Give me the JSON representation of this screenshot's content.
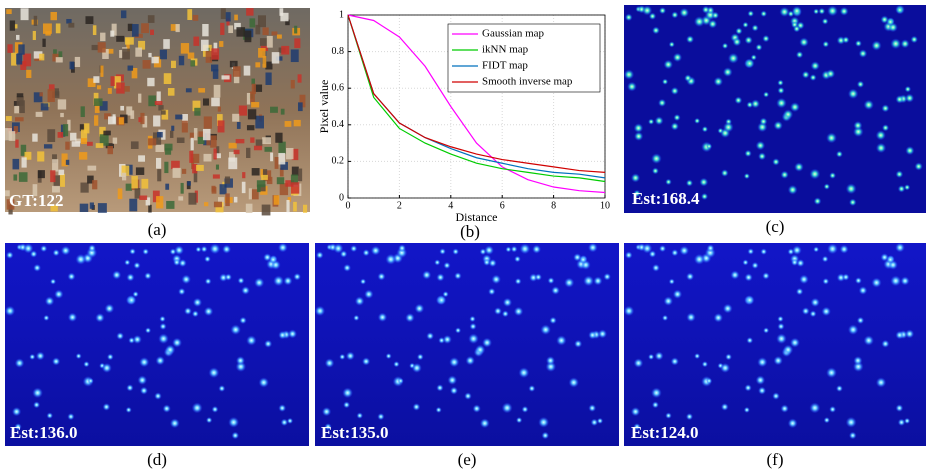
{
  "panels": [
    {
      "caption": "(a)",
      "overlay": "GT:122"
    },
    {
      "caption": "(b)"
    },
    {
      "caption": "(c)",
      "overlay": "Est:168.4"
    },
    {
      "caption": "(d)",
      "overlay": "Est:136.0"
    },
    {
      "caption": "(e)",
      "overlay": "Est:135.0"
    },
    {
      "caption": "(f)",
      "overlay": "Est:124.0"
    }
  ],
  "chart_data": {
    "type": "line",
    "xlabel": "Distance",
    "ylabel": "Pixel value",
    "x": [
      0,
      1,
      2,
      3,
      4,
      5,
      6,
      7,
      8,
      9,
      10
    ],
    "series": [
      {
        "name": "Gaussian map",
        "color": "#ff00ff",
        "values": [
          1.0,
          0.97,
          0.88,
          0.72,
          0.5,
          0.3,
          0.17,
          0.1,
          0.06,
          0.04,
          0.03
        ]
      },
      {
        "name": "ikNN map",
        "color": "#00cc00",
        "values": [
          1.0,
          0.55,
          0.38,
          0.3,
          0.24,
          0.19,
          0.16,
          0.14,
          0.12,
          0.11,
          0.09
        ]
      },
      {
        "name": "FIDT map",
        "color": "#0072bd",
        "values": [
          1.0,
          0.57,
          0.41,
          0.33,
          0.27,
          0.22,
          0.19,
          0.16,
          0.14,
          0.13,
          0.11
        ]
      },
      {
        "name": "Smooth inverse map",
        "color": "#d00000",
        "values": [
          1.0,
          0.57,
          0.41,
          0.33,
          0.28,
          0.24,
          0.21,
          0.19,
          0.17,
          0.15,
          0.14
        ]
      }
    ],
    "xlim": [
      0,
      10
    ],
    "ylim": [
      0,
      1
    ],
    "xticks": [
      0,
      2,
      4,
      6,
      8,
      10
    ],
    "yticks": [
      0,
      0.2,
      0.4,
      0.6,
      0.8,
      1
    ],
    "grid": true,
    "legend": "upper-right"
  }
}
